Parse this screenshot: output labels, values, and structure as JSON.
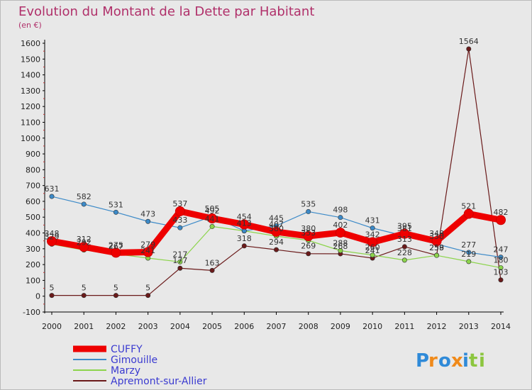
{
  "chart_data": {
    "type": "line",
    "title": "Evolution du Montant de la Dette par Habitant",
    "subtitle": "(en €)",
    "x": [
      "2000",
      "2001",
      "2002",
      "2003",
      "2004",
      "2005",
      "2006",
      "2007",
      "2008",
      "2009",
      "2010",
      "2011",
      "2012",
      "2013",
      "2014"
    ],
    "ylim": [
      -100,
      1600
    ],
    "yticks": [
      -100,
      0,
      100,
      200,
      300,
      400,
      500,
      600,
      700,
      800,
      900,
      1000,
      1100,
      1200,
      1300,
      1400,
      1500,
      1600
    ],
    "grid": false,
    "legend": "bottom-left",
    "series": [
      {
        "name": "CUFFY",
        "color": "#ee0000",
        "values": [
          348,
          312,
          275,
          279,
          537,
          492,
          454,
          407,
          380,
          402,
          342,
          395,
          348,
          521,
          482
        ]
      },
      {
        "name": "Gimouille",
        "color": "#3c8ac8",
        "values": [
          631,
          582,
          531,
          473,
          433,
          505,
          413,
          445,
          535,
          498,
          431,
          381,
          330,
          277,
          247
        ]
      },
      {
        "name": "Marzy",
        "color": "#8cd44c",
        "values": [
          329,
          292,
          267,
          241,
          217,
          441,
          413,
          380,
          353,
          288,
          260,
          228,
          258,
          219,
          180
        ]
      },
      {
        "name": "Apremont-sur-Allier",
        "color": "#6a1a1a",
        "values": [
          5,
          5,
          5,
          5,
          177,
          163,
          318,
          294,
          269,
          268,
          241,
          313,
          259,
          1564,
          103
        ]
      }
    ]
  },
  "logo": {
    "text": "Proxiti"
  }
}
